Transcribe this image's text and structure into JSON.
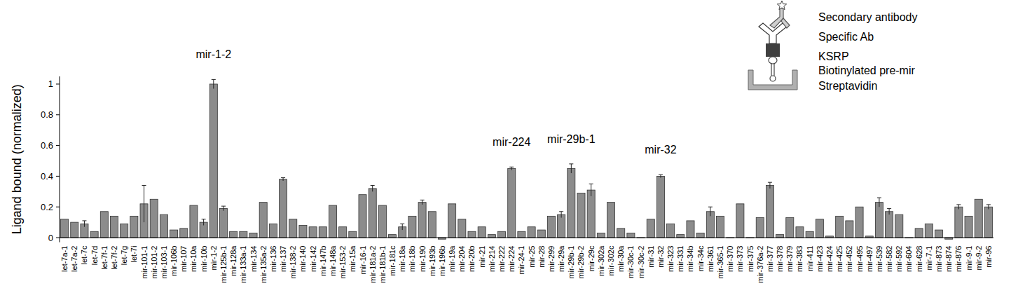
{
  "chart_data": {
    "type": "bar",
    "y_label": "Ligand bound (normalized)",
    "categories": [
      "let-7a-1",
      "let-7a-2",
      "let-7c",
      "let-7d",
      "let-7f-1",
      "let-7f-2",
      "let-7g",
      "let-7i",
      "mir-101-1",
      "mir-101-2",
      "mir-103-1",
      "mir-106b",
      "mir-107",
      "mir-10a",
      "mir-10b",
      "mir-1-2",
      "mir-125b-1",
      "mir-128a",
      "mir-133a-1",
      "mir-134",
      "mir-135a-2",
      "mir-136",
      "mir-137",
      "mir-138-2",
      "mir-140",
      "mir-142",
      "mir-147b",
      "mir-148a",
      "mir-153-2",
      "mir-15a",
      "mir-16-1",
      "mir-181a-2",
      "mir-181b-1",
      "mir-181c",
      "mir-18a",
      "mir-18b",
      "mir-190",
      "mir-193b",
      "mir-196b",
      "mir-19a",
      "mir-204",
      "mir-20b",
      "mir-21",
      "mir-214",
      "mir-222",
      "mir-224",
      "mir-24-1",
      "mir-25",
      "mir-28",
      "mir-299",
      "mir-29a",
      "mir-29b-1",
      "mir-29b-2",
      "mir-29c",
      "mir-302a",
      "mir-302c",
      "mir-30a",
      "mir-30c-1",
      "mir-30c-2",
      "mir-31",
      "mir-32",
      "mir-323",
      "mir-331",
      "mir-34b",
      "mir-34c",
      "mir-361",
      "mir-365-1",
      "mir-370",
      "mir-373",
      "mir-375",
      "mir-376a-2",
      "mir-377",
      "mir-378",
      "mir-379",
      "mir-383",
      "mir-411",
      "mir-423",
      "mir-424",
      "mir-425",
      "mir-452",
      "mir-495",
      "mir-497",
      "mir-539",
      "mir-582",
      "mir-592",
      "mir-604",
      "mir-628",
      "mir-7-1",
      "mir-873",
      "mir-874",
      "mir-876",
      "mir-9-1",
      "mir-9-2",
      "mir-96"
    ],
    "values": [
      0.12,
      0.1,
      0.09,
      0.04,
      0.17,
      0.14,
      0.09,
      0.14,
      0.22,
      0.25,
      0.15,
      0.05,
      0.06,
      0.21,
      0.1,
      1.0,
      0.19,
      0.04,
      0.04,
      0.03,
      0.23,
      0.09,
      0.38,
      0.12,
      0.08,
      0.07,
      0.07,
      0.21,
      0.07,
      0.04,
      0.28,
      0.32,
      0.21,
      0.02,
      0.07,
      0.14,
      0.23,
      0.17,
      -0.01,
      0.22,
      0.12,
      0.04,
      0.07,
      0.02,
      0.04,
      0.45,
      0.04,
      0.07,
      0.05,
      0.14,
      0.15,
      0.45,
      0.29,
      0.31,
      0.03,
      0.23,
      0.06,
      0.03,
      0,
      0.12,
      0.4,
      0.09,
      0.02,
      0.11,
      0.03,
      0.17,
      0.14,
      0,
      0.22,
      0,
      0.13,
      0.34,
      0.02,
      0.13,
      0.07,
      0.04,
      0.12,
      0.01,
      0.14,
      0.11,
      0.2,
      0.01,
      0.23,
      0.17,
      0.15,
      0,
      0.06,
      0.09,
      0.05,
      -0.01,
      0.2,
      0.14,
      0.25,
      0.2
    ],
    "errors": [
      0,
      0,
      0.02,
      0,
      0,
      0,
      0,
      0,
      0.12,
      0,
      0,
      0,
      0,
      0,
      0.02,
      0.03,
      0.015,
      0,
      0,
      0,
      0,
      0,
      0.01,
      0,
      0,
      0,
      0,
      0,
      0,
      0,
      0,
      0.02,
      0,
      0,
      0.02,
      0,
      0.015,
      0,
      0,
      0,
      0,
      0,
      0,
      0,
      0,
      0.01,
      0,
      0,
      0,
      0,
      0.02,
      0.03,
      0,
      0.04,
      0,
      0,
      0,
      0,
      0,
      0,
      0.01,
      0,
      0,
      0,
      0,
      0.03,
      0,
      0,
      0,
      0,
      0,
      0.02,
      0,
      0,
      0,
      0,
      0,
      0,
      0,
      0,
      0,
      0,
      0.03,
      0.02,
      0,
      0,
      0,
      0,
      0,
      0,
      0.015,
      0,
      0,
      0.015
    ],
    "color": "#8c8c8c",
    "ylim": [
      -0.03,
      1.05
    ],
    "yticks": [
      0,
      0.2,
      0.4,
      0.6,
      0.8,
      1
    ],
    "grid": false,
    "annotations": [
      "mir-1-2",
      "mir-224",
      "mir-29b-1",
      "mir-32"
    ],
    "inset_labels": [
      "Secondary antibody",
      "Specific Ab",
      "KSRP",
      "Biotinylated pre-mir",
      "Streptavidin"
    ]
  }
}
